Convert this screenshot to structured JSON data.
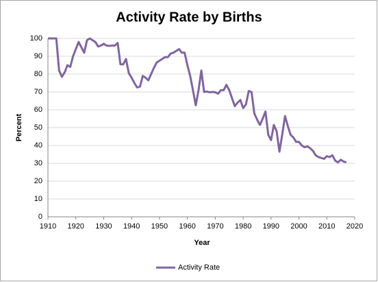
{
  "chart_data": {
    "type": "line",
    "title": "Activity Rate by Births",
    "xlabel": "Year",
    "ylabel": "Percent",
    "x": [
      1910,
      1911,
      1912,
      1913,
      1914,
      1915,
      1916,
      1917,
      1918,
      1919,
      1920,
      1921,
      1922,
      1923,
      1924,
      1925,
      1926,
      1927,
      1928,
      1929,
      1930,
      1931,
      1932,
      1933,
      1934,
      1935,
      1936,
      1937,
      1938,
      1939,
      1940,
      1941,
      1942,
      1943,
      1944,
      1945,
      1946,
      1947,
      1948,
      1949,
      1950,
      1951,
      1952,
      1953,
      1954,
      1955,
      1956,
      1957,
      1958,
      1959,
      1960,
      1961,
      1962,
      1963,
      1964,
      1965,
      1966,
      1967,
      1968,
      1969,
      1970,
      1971,
      1972,
      1973,
      1974,
      1975,
      1976,
      1977,
      1978,
      1979,
      1980,
      1981,
      1982,
      1983,
      1984,
      1985,
      1986,
      1987,
      1988,
      1989,
      1990,
      1991,
      1992,
      1993,
      1994,
      1995,
      1996,
      1997,
      1998,
      1999,
      2000,
      2001,
      2002,
      2003,
      2004,
      2005,
      2006,
      2007,
      2008,
      2009,
      2010,
      2011,
      2012,
      2013,
      2014,
      2015,
      2016,
      2017
    ],
    "series": [
      {
        "name": "Activity Rate",
        "color": "#8064a2",
        "values": [
          100,
          100,
          100,
          100,
          82,
          78.5,
          81,
          85,
          84,
          90,
          94,
          98,
          95,
          92,
          99,
          100,
          99,
          98,
          95.5,
          96,
          97,
          96,
          95.8,
          96,
          96,
          97.5,
          85.5,
          85.5,
          88.5,
          80.5,
          78,
          75,
          72.5,
          73,
          79,
          78,
          76.5,
          80,
          83.5,
          86.5,
          87.5,
          88.5,
          89.5,
          89.5,
          91.5,
          92,
          93,
          94,
          92,
          92,
          85,
          79,
          71,
          62.5,
          71,
          82,
          70,
          70.2,
          69.8,
          70,
          69.8,
          69,
          71,
          71,
          74,
          71,
          66.5,
          62,
          64,
          65.5,
          61,
          63,
          70.5,
          70,
          58,
          54.5,
          51.5,
          55,
          59,
          46,
          43,
          51.5,
          48,
          36.5,
          46,
          56.5,
          51,
          46,
          44.5,
          42,
          42,
          40,
          39,
          39.5,
          38.5,
          37,
          34.5,
          33.5,
          33,
          32.5,
          34,
          33.5,
          34.5,
          31.5,
          30.5,
          32,
          31,
          30.5
        ]
      }
    ],
    "xlim": [
      1910,
      2020
    ],
    "xticks": [
      1910,
      1920,
      1930,
      1940,
      1950,
      1960,
      1970,
      1980,
      1990,
      2000,
      2010,
      2020
    ],
    "ylim": [
      0,
      100
    ],
    "yticks": [
      0,
      10,
      20,
      30,
      40,
      50,
      60,
      70,
      80,
      90,
      100
    ],
    "grid": true,
    "legend": "bottom"
  }
}
